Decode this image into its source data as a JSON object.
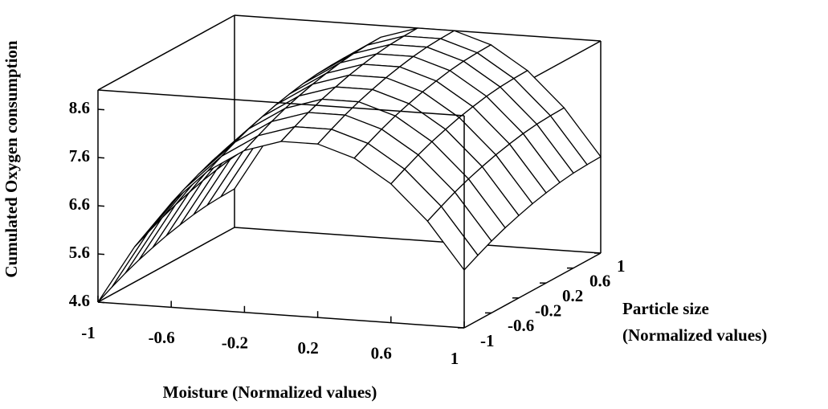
{
  "chart_data": {
    "type": "surface",
    "x_label": "Moisture (Normalized values)",
    "y_label": [
      "Particle size",
      "(Normalized values)"
    ],
    "z_label": "Cumulated Oxygen consumption",
    "x": [
      -1,
      -0.8,
      -0.6,
      -0.4,
      -0.2,
      0,
      0.2,
      0.4,
      0.6,
      0.8,
      1
    ],
    "y": [
      -1,
      -0.8,
      -0.6,
      -0.4,
      -0.2,
      0,
      0.2,
      0.4,
      0.6,
      0.8,
      1
    ],
    "z": [
      [
        4.6,
        5.8,
        6.76,
        7.48,
        7.96,
        8.2,
        8.2,
        7.96,
        7.48,
        6.76,
        5.8
      ],
      [
        4.75,
        5.95,
        6.91,
        7.63,
        8.11,
        8.35,
        8.35,
        8.11,
        7.63,
        6.91,
        5.95
      ],
      [
        4.89,
        6.09,
        7.05,
        7.77,
        8.25,
        8.49,
        8.49,
        8.25,
        7.77,
        7.05,
        6.09
      ],
      [
        5.01,
        6.21,
        7.17,
        7.89,
        8.37,
        8.61,
        8.61,
        8.37,
        7.89,
        7.17,
        6.21
      ],
      [
        5.11,
        6.31,
        7.27,
        7.99,
        8.47,
        8.71,
        8.71,
        8.47,
        7.99,
        7.27,
        6.31
      ],
      [
        5.2,
        6.4,
        7.36,
        8.08,
        8.56,
        8.8,
        8.8,
        8.56,
        8.08,
        7.36,
        6.4
      ],
      [
        5.27,
        6.47,
        7.43,
        8.15,
        8.63,
        8.87,
        8.87,
        8.63,
        8.15,
        7.43,
        6.47
      ],
      [
        5.33,
        6.53,
        7.49,
        8.21,
        8.69,
        8.93,
        8.93,
        8.69,
        8.21,
        7.49,
        6.53
      ],
      [
        5.37,
        6.57,
        7.53,
        8.25,
        8.73,
        8.97,
        8.97,
        8.73,
        8.25,
        7.53,
        6.57
      ],
      [
        5.39,
        6.59,
        7.55,
        8.27,
        8.75,
        8.99,
        8.99,
        8.75,
        8.27,
        7.55,
        6.59
      ],
      [
        5.4,
        6.6,
        7.56,
        8.28,
        8.76,
        9.0,
        9.0,
        8.76,
        8.28,
        7.56,
        6.6
      ]
    ],
    "xlim": [
      -1,
      1
    ],
    "ylim": [
      -1,
      1
    ],
    "zlim": [
      4.6,
      9.0
    ],
    "xticks": [
      -1,
      -0.6,
      -0.2,
      0.2,
      0.6,
      1
    ],
    "yticks": [
      -1,
      -0.6,
      -0.2,
      0.2,
      0.6,
      1
    ],
    "zticks": [
      4.6,
      5.6,
      6.6,
      7.6,
      8.6
    ],
    "color": "#000000",
    "fill": "#ffffff"
  }
}
